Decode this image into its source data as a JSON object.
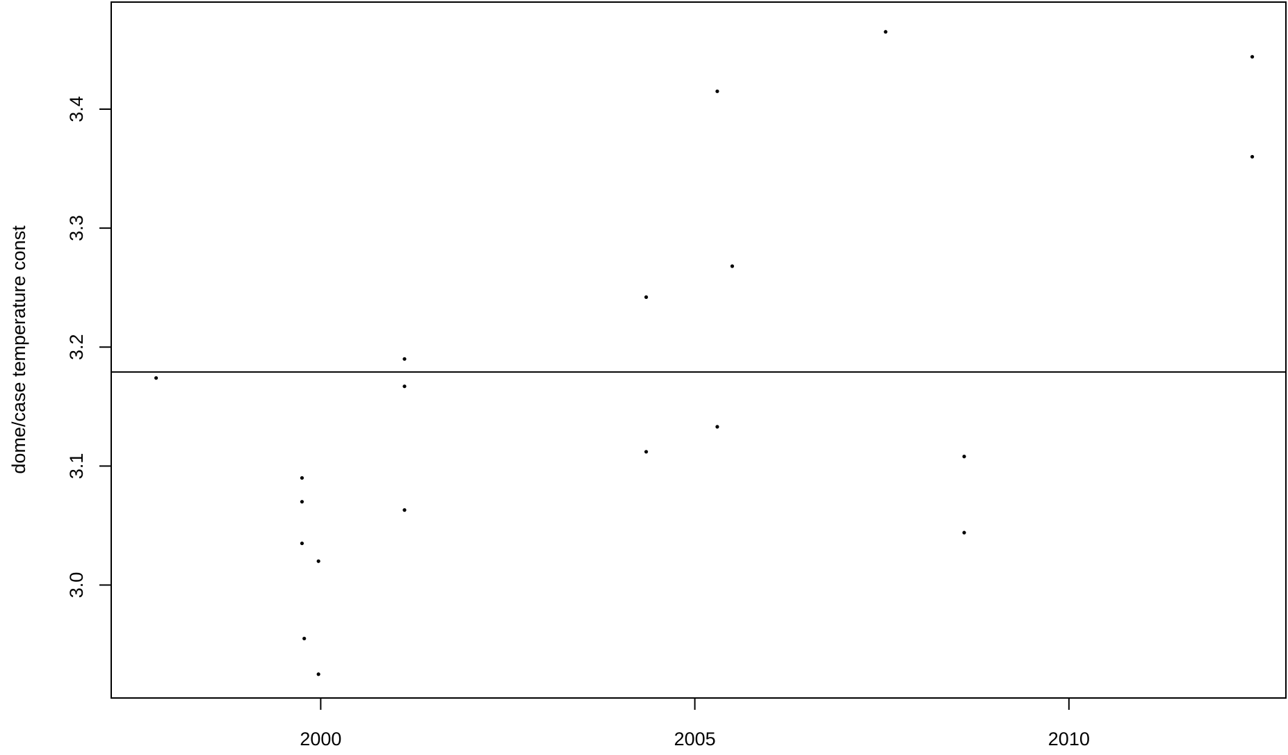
{
  "chart_data": {
    "type": "scatter",
    "title": "",
    "xlabel": "",
    "ylabel": "dome/case temperature const",
    "xlim": [
      1997.2,
      2012.9
    ],
    "ylim": [
      2.905,
      3.49
    ],
    "xticks": [
      2000,
      2005,
      2010
    ],
    "yticks": [
      3.0,
      3.1,
      3.2,
      3.3,
      3.4
    ],
    "ytick_labels": [
      "3.0",
      "3.1",
      "3.2",
      "3.3",
      "3.4"
    ],
    "xtick_labels": [
      "2000",
      "2005",
      "2010"
    ],
    "grid": false,
    "legend": "none",
    "reference_line": {
      "orientation": "horizontal",
      "y": 3.179
    },
    "series": [
      {
        "points": [
          {
            "x": 1997.8,
            "y": 3.174
          },
          {
            "x": 1999.75,
            "y": 3.09
          },
          {
            "x": 1999.75,
            "y": 3.07
          },
          {
            "x": 1999.75,
            "y": 3.035
          },
          {
            "x": 1999.78,
            "y": 2.955
          },
          {
            "x": 1999.97,
            "y": 3.02
          },
          {
            "x": 1999.97,
            "y": 2.925
          },
          {
            "x": 2001.12,
            "y": 3.19
          },
          {
            "x": 2001.12,
            "y": 3.167
          },
          {
            "x": 2001.12,
            "y": 3.063
          },
          {
            "x": 2004.35,
            "y": 3.242
          },
          {
            "x": 2004.35,
            "y": 3.112
          },
          {
            "x": 2005.3,
            "y": 3.415
          },
          {
            "x": 2005.3,
            "y": 3.133
          },
          {
            "x": 2005.5,
            "y": 3.268
          },
          {
            "x": 2007.55,
            "y": 3.465
          },
          {
            "x": 2008.6,
            "y": 3.108
          },
          {
            "x": 2008.6,
            "y": 3.044
          },
          {
            "x": 2012.45,
            "y": 3.444
          },
          {
            "x": 2012.45,
            "y": 3.36
          }
        ]
      }
    ]
  }
}
